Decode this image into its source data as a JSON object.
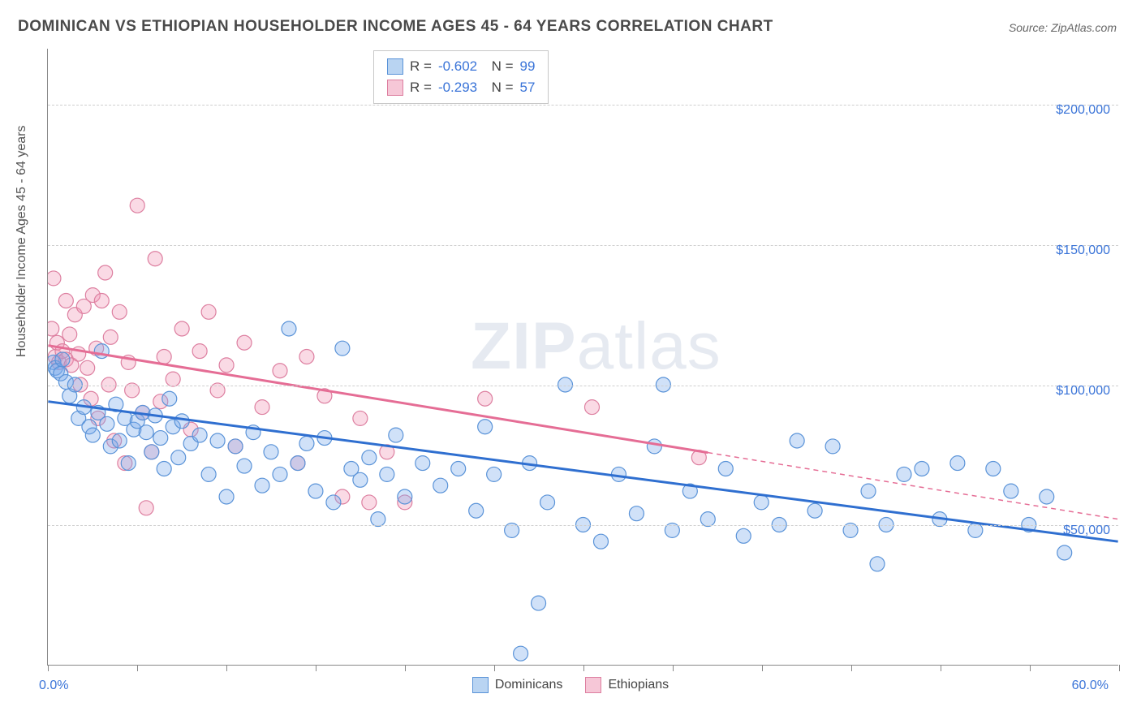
{
  "title": "DOMINICAN VS ETHIOPIAN HOUSEHOLDER INCOME AGES 45 - 64 YEARS CORRELATION CHART",
  "source_label": "Source: ZipAtlas.com",
  "yaxis_title": "Householder Income Ages 45 - 64 years",
  "watermark": {
    "bold": "ZIP",
    "rest": "atlas"
  },
  "chart": {
    "type": "scatter",
    "background_color": "#ffffff",
    "grid_color": "#cfcfcf",
    "axis_color": "#888888",
    "xlim": [
      0,
      60
    ],
    "ylim": [
      0,
      220000
    ],
    "xtick_step": 5,
    "x_min_label": "0.0%",
    "x_max_label": "60.0%",
    "y_gridlines": [
      {
        "value": 50000,
        "label": "$50,000"
      },
      {
        "value": 100000,
        "label": "$100,000"
      },
      {
        "value": 150000,
        "label": "$150,000"
      },
      {
        "value": 200000,
        "label": "$200,000"
      }
    ],
    "ytick_label_color": "#3a74d8",
    "marker_radius": 9,
    "marker_stroke_width": 1.2,
    "trend_line_width": 3,
    "series": [
      {
        "name": "Dominicans",
        "fill": "rgba(120,170,235,0.35)",
        "stroke": "#5a93d8",
        "line_color": "#2f6fd0",
        "swatch_fill": "#b9d4f2",
        "swatch_border": "#5a93d8",
        "R": "-0.602",
        "N": "99",
        "trend": {
          "x0": 0,
          "y0": 94000,
          "x1": 60,
          "y1": 44000
        },
        "trend_dash_after_x": null,
        "points": [
          [
            0.3,
            108000
          ],
          [
            0.4,
            106000
          ],
          [
            0.5,
            105000
          ],
          [
            0.7,
            104000
          ],
          [
            0.8,
            109000
          ],
          [
            1.0,
            101000
          ],
          [
            1.2,
            96000
          ],
          [
            1.5,
            100000
          ],
          [
            1.7,
            88000
          ],
          [
            2.0,
            92000
          ],
          [
            2.3,
            85000
          ],
          [
            2.5,
            82000
          ],
          [
            2.8,
            90000
          ],
          [
            3.0,
            112000
          ],
          [
            3.3,
            86000
          ],
          [
            3.5,
            78000
          ],
          [
            3.8,
            93000
          ],
          [
            4.0,
            80000
          ],
          [
            4.3,
            88000
          ],
          [
            4.5,
            72000
          ],
          [
            4.8,
            84000
          ],
          [
            5.0,
            87000
          ],
          [
            5.3,
            90000
          ],
          [
            5.5,
            83000
          ],
          [
            5.8,
            76000
          ],
          [
            6.0,
            89000
          ],
          [
            6.3,
            81000
          ],
          [
            6.5,
            70000
          ],
          [
            6.8,
            95000
          ],
          [
            7.0,
            85000
          ],
          [
            7.3,
            74000
          ],
          [
            7.5,
            87000
          ],
          [
            8.0,
            79000
          ],
          [
            8.5,
            82000
          ],
          [
            9.0,
            68000
          ],
          [
            9.5,
            80000
          ],
          [
            10.0,
            60000
          ],
          [
            10.5,
            78000
          ],
          [
            11.0,
            71000
          ],
          [
            11.5,
            83000
          ],
          [
            12.0,
            64000
          ],
          [
            12.5,
            76000
          ],
          [
            13.0,
            68000
          ],
          [
            13.5,
            120000
          ],
          [
            14.0,
            72000
          ],
          [
            14.5,
            79000
          ],
          [
            15.0,
            62000
          ],
          [
            15.5,
            81000
          ],
          [
            16.0,
            58000
          ],
          [
            16.5,
            113000
          ],
          [
            17.0,
            70000
          ],
          [
            17.5,
            66000
          ],
          [
            18.0,
            74000
          ],
          [
            18.5,
            52000
          ],
          [
            19.0,
            68000
          ],
          [
            19.5,
            82000
          ],
          [
            20.0,
            60000
          ],
          [
            21.0,
            72000
          ],
          [
            22.0,
            64000
          ],
          [
            23.0,
            70000
          ],
          [
            24.0,
            55000
          ],
          [
            24.5,
            85000
          ],
          [
            25.0,
            68000
          ],
          [
            26.0,
            48000
          ],
          [
            26.5,
            4000
          ],
          [
            27.0,
            72000
          ],
          [
            27.5,
            22000
          ],
          [
            28.0,
            58000
          ],
          [
            29.0,
            100000
          ],
          [
            30.0,
            50000
          ],
          [
            31.0,
            44000
          ],
          [
            32.0,
            68000
          ],
          [
            33.0,
            54000
          ],
          [
            34.0,
            78000
          ],
          [
            34.5,
            100000
          ],
          [
            35.0,
            48000
          ],
          [
            36.0,
            62000
          ],
          [
            37.0,
            52000
          ],
          [
            38.0,
            70000
          ],
          [
            39.0,
            46000
          ],
          [
            40.0,
            58000
          ],
          [
            41.0,
            50000
          ],
          [
            42.0,
            80000
          ],
          [
            43.0,
            55000
          ],
          [
            44.0,
            78000
          ],
          [
            45.0,
            48000
          ],
          [
            46.0,
            62000
          ],
          [
            46.5,
            36000
          ],
          [
            47.0,
            50000
          ],
          [
            48.0,
            68000
          ],
          [
            49.0,
            70000
          ],
          [
            50.0,
            52000
          ],
          [
            51.0,
            72000
          ],
          [
            52.0,
            48000
          ],
          [
            53.0,
            70000
          ],
          [
            54.0,
            62000
          ],
          [
            55.0,
            50000
          ],
          [
            56.0,
            60000
          ],
          [
            57.0,
            40000
          ]
        ]
      },
      {
        "name": "Ethiopians",
        "fill": "rgba(240,150,180,0.35)",
        "stroke": "#dd7fa0",
        "line_color": "#e56d95",
        "swatch_fill": "#f6c7d7",
        "swatch_border": "#dd7fa0",
        "R": "-0.293",
        "N": "57",
        "trend": {
          "x0": 0,
          "y0": 114000,
          "x1": 60,
          "y1": 52000
        },
        "trend_dash_after_x": 37,
        "points": [
          [
            0.2,
            120000
          ],
          [
            0.3,
            138000
          ],
          [
            0.4,
            110000
          ],
          [
            0.5,
            115000
          ],
          [
            0.6,
            108000
          ],
          [
            0.8,
            112000
          ],
          [
            1.0,
            130000
          ],
          [
            1.0,
            109000
          ],
          [
            1.2,
            118000
          ],
          [
            1.3,
            107000
          ],
          [
            1.5,
            125000
          ],
          [
            1.7,
            111000
          ],
          [
            1.8,
            100000
          ],
          [
            2.0,
            128000
          ],
          [
            2.2,
            106000
          ],
          [
            2.4,
            95000
          ],
          [
            2.5,
            132000
          ],
          [
            2.7,
            113000
          ],
          [
            2.8,
            88000
          ],
          [
            3.0,
            130000
          ],
          [
            3.2,
            140000
          ],
          [
            3.4,
            100000
          ],
          [
            3.5,
            117000
          ],
          [
            3.7,
            80000
          ],
          [
            4.0,
            126000
          ],
          [
            4.3,
            72000
          ],
          [
            4.5,
            108000
          ],
          [
            4.7,
            98000
          ],
          [
            5.0,
            164000
          ],
          [
            5.3,
            90000
          ],
          [
            5.5,
            56000
          ],
          [
            5.8,
            76000
          ],
          [
            6.0,
            145000
          ],
          [
            6.3,
            94000
          ],
          [
            6.5,
            110000
          ],
          [
            7.0,
            102000
          ],
          [
            7.5,
            120000
          ],
          [
            8.0,
            84000
          ],
          [
            8.5,
            112000
          ],
          [
            9.0,
            126000
          ],
          [
            9.5,
            98000
          ],
          [
            10.0,
            107000
          ],
          [
            10.5,
            78000
          ],
          [
            11.0,
            115000
          ],
          [
            12.0,
            92000
          ],
          [
            13.0,
            105000
          ],
          [
            14.0,
            72000
          ],
          [
            14.5,
            110000
          ],
          [
            15.5,
            96000
          ],
          [
            16.5,
            60000
          ],
          [
            17.5,
            88000
          ],
          [
            18.0,
            58000
          ],
          [
            19.0,
            76000
          ],
          [
            20.0,
            58000
          ],
          [
            24.5,
            95000
          ],
          [
            30.5,
            92000
          ],
          [
            36.5,
            74000
          ]
        ]
      }
    ],
    "legend_bottom": [
      {
        "key": 0,
        "label": "Dominicans"
      },
      {
        "key": 1,
        "label": "Ethiopians"
      }
    ]
  }
}
